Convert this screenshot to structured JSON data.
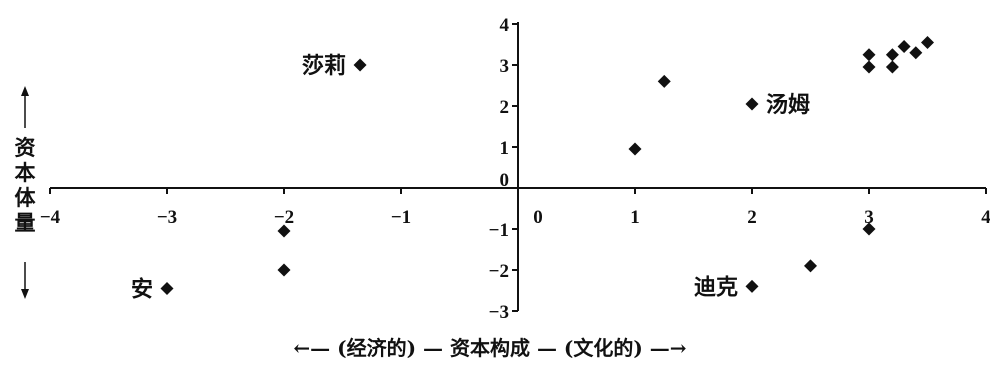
{
  "chart_data": {
    "type": "scatter",
    "title": "",
    "xlabel": "←— (经济的) — 资本构成 — (文化的) —→",
    "ylabel": "资本体量",
    "xlim": [
      -4,
      4
    ],
    "ylim": [
      -3,
      4
    ],
    "x_ticks": [
      "-4",
      "-3",
      "-2",
      "-1",
      "0",
      "1",
      "2",
      "3",
      "4"
    ],
    "y_ticks": [
      "4",
      "3",
      "2",
      "1",
      "0",
      "-1",
      "-2",
      "-3"
    ],
    "grid": false,
    "points": [
      {
        "x": -1.35,
        "y": 3.0,
        "label": "莎莉"
      },
      {
        "x": 2.0,
        "y": 2.05,
        "label": "汤姆"
      },
      {
        "x": -3.0,
        "y": -2.45,
        "label": "安"
      },
      {
        "x": 2.0,
        "y": -2.4,
        "label": "迪克"
      },
      {
        "x": -2.0,
        "y": -1.05,
        "label": ""
      },
      {
        "x": -2.0,
        "y": -2.0,
        "label": ""
      },
      {
        "x": 1.0,
        "y": 0.95,
        "label": ""
      },
      {
        "x": 1.25,
        "y": 2.6,
        "label": ""
      },
      {
        "x": 2.5,
        "y": -1.9,
        "label": ""
      },
      {
        "x": 3.0,
        "y": -1.0,
        "label": ""
      },
      {
        "x": 3.0,
        "y": 3.25,
        "label": ""
      },
      {
        "x": 3.0,
        "y": 2.95,
        "label": ""
      },
      {
        "x": 3.2,
        "y": 3.25,
        "label": ""
      },
      {
        "x": 3.2,
        "y": 2.95,
        "label": ""
      },
      {
        "x": 3.3,
        "y": 3.45,
        "label": ""
      },
      {
        "x": 3.4,
        "y": 3.3,
        "label": ""
      },
      {
        "x": 3.5,
        "y": 3.55,
        "label": ""
      }
    ]
  }
}
